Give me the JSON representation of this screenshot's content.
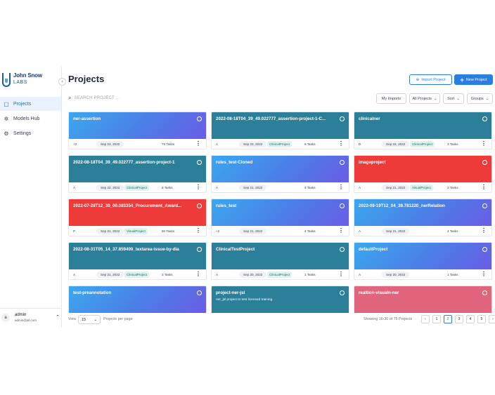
{
  "brand": {
    "line1": "John Snow",
    "line2": "LABS"
  },
  "sidebar": {
    "items": [
      {
        "label": "Projects",
        "icon": "projects-icon"
      },
      {
        "label": "Models Hub",
        "icon": "models-hub-icon"
      },
      {
        "label": "Settings",
        "icon": "settings-icon"
      }
    ],
    "user": {
      "initial": "a",
      "name": "admin",
      "email": "admin@jsl.com"
    }
  },
  "header": {
    "title": "Projects",
    "import_label": "Import Project",
    "new_label": "New Project"
  },
  "toolbar": {
    "search_placeholder": "SEARCH PROJECT ...",
    "my_imports": "My Imports",
    "filter": "All Projects",
    "sort": "Sort",
    "groups": "Groups"
  },
  "projects": [
    {
      "name": "ner-assertion",
      "owner": "+2",
      "date": "Sep 23, 2022",
      "tag": "",
      "tasks": "79 Tasks",
      "color": "blue"
    },
    {
      "name": "2022-08-18T04_39_49.022777_assertion-project-1-C...",
      "owner": "A",
      "date": "Sep 22, 2022",
      "tag": "ClinicalProject",
      "tasks": "6 Tasks",
      "color": "teal"
    },
    {
      "name": "clinicalner",
      "owner": "D",
      "date": "Sep 22, 2022",
      "tag": "ClinicalProject",
      "tasks": "3 Tasks",
      "color": "teal"
    },
    {
      "name": "2022-08-18T04_39_49.022777_assertion-project-1",
      "owner": "A",
      "date": "Sep 22, 2022",
      "tag": "ClinicalProject",
      "tasks": "6 Tasks",
      "color": "teal"
    },
    {
      "name": "rules_test-Cloned",
      "owner": "A",
      "date": "Sep 21, 2022",
      "tag": "",
      "tasks": "4 Tasks",
      "color": "blue"
    },
    {
      "name": "imageproject",
      "owner": "A",
      "date": "Sep 21, 2022",
      "tag": "VisualProject",
      "tasks": "3 Tasks",
      "color": "red"
    },
    {
      "name": "2022-07-28T12_30_00.083354_Procurement_Award...",
      "owner": "P",
      "date": "Sep 21, 2022",
      "tag": "VisualProject",
      "tasks": "50 Tasks",
      "color": "red"
    },
    {
      "name": "rules_test",
      "owner": "+2",
      "date": "Sep 21, 2022",
      "tag": "",
      "tasks": "4 Tasks",
      "color": "blue"
    },
    {
      "name": "2022-09-19T12_04_39.781220_nerRelation",
      "owner": "A",
      "date": "Sep 21, 2022",
      "tag": "",
      "tasks": "4 Tasks",
      "color": "blue"
    },
    {
      "name": "2022-08-31T05_14_37.859409_textarea-issue-by-dia",
      "owner": "A",
      "date": "Sep 21, 2022",
      "tag": "ClinicalProject",
      "tasks": "3 Tasks",
      "color": "teal"
    },
    {
      "name": "ClinicalTestProject",
      "owner": "A",
      "date": "Sep 20, 2022",
      "tag": "ClinicalProject",
      "tasks": "1 Tasks",
      "color": "teal"
    },
    {
      "name": "defaultProject",
      "owner": "A",
      "date": "Sep 20, 2022",
      "tag": "",
      "tasks": "1 Tasks",
      "color": "blue"
    },
    {
      "name": "test-preannotation",
      "owner": "",
      "date": "",
      "tag": "",
      "tasks": "",
      "color": "blue"
    },
    {
      "name": "project-ner-jsl",
      "desc": "ner_jsl project to test licensed training",
      "owner": "",
      "date": "",
      "tag": "",
      "tasks": "",
      "color": "teal"
    },
    {
      "name": "realtion-visuaIn-ner",
      "owner": "",
      "date": "",
      "tag": "",
      "tasks": "",
      "color": "pink"
    }
  ],
  "pagination": {
    "view_label": "View",
    "per_page": "15",
    "per_page_label": "Projects per page",
    "showing": "Showing 16-30 of 75 Projects",
    "prev": "‹",
    "next": "›",
    "pages": [
      "1",
      "2",
      "3",
      "4",
      "5"
    ],
    "current": "2"
  },
  "colors": {
    "accent": "#2a7de1",
    "teal": "#2c7f98",
    "red": "#ef3a3a",
    "pink": "#e0647c"
  }
}
